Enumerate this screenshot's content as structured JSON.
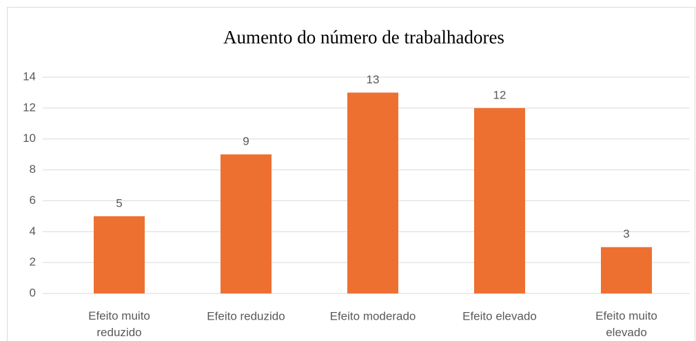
{
  "chart_data": {
    "type": "bar",
    "title": "Aumento do número de trabalhadores",
    "categories": [
      "Efeito muito reduzido",
      "Efeito reduzido",
      "Efeito moderado",
      "Efeito elevado",
      "Efeito muito elevado"
    ],
    "values": [
      5,
      9,
      13,
      12,
      3
    ],
    "color": "#ed7031",
    "ylim": [
      0,
      14
    ],
    "yticks": [
      0,
      2,
      4,
      6,
      8,
      10,
      12,
      14
    ],
    "grid": true
  }
}
